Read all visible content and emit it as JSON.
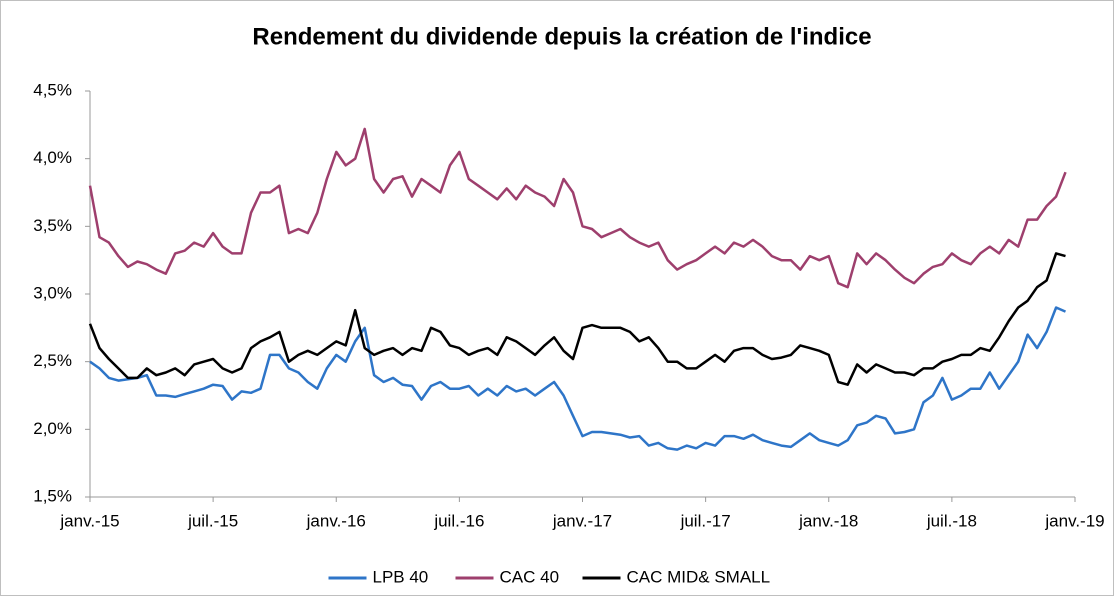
{
  "chart_data": {
    "type": "line",
    "title": "Rendement du dividende depuis la création de l'indice",
    "categories": [
      "janv.-15",
      null,
      null,
      null,
      null,
      null,
      null,
      null,
      null,
      null,
      null,
      null,
      null,
      "juil.-15",
      null,
      null,
      null,
      null,
      null,
      null,
      null,
      null,
      null,
      null,
      null,
      null,
      "janv.-16",
      null,
      null,
      null,
      null,
      null,
      null,
      null,
      null,
      null,
      null,
      null,
      null,
      "juil.-16",
      null,
      null,
      null,
      null,
      null,
      null,
      null,
      null,
      null,
      null,
      null,
      null,
      "janv.-17",
      null,
      null,
      null,
      null,
      null,
      null,
      null,
      null,
      null,
      null,
      null,
      null,
      "juil.-17",
      null,
      null,
      null,
      null,
      null,
      null,
      null,
      null,
      null,
      null,
      null,
      null,
      "janv.-18",
      null,
      null,
      null,
      null,
      null,
      null,
      null,
      null,
      null,
      null,
      null,
      null,
      "juil.-18",
      null,
      null,
      null,
      null,
      null,
      null,
      null,
      null,
      null,
      null,
      null,
      null,
      "janv.-19"
    ],
    "series": [
      {
        "name": "LPB 40",
        "color": "#2e75c8",
        "values": [
          2.5,
          2.45,
          2.38,
          2.36,
          2.37,
          2.38,
          2.4,
          2.25,
          2.25,
          2.24,
          2.26,
          2.28,
          2.3,
          2.33,
          2.32,
          2.22,
          2.28,
          2.27,
          2.3,
          2.55,
          2.55,
          2.45,
          2.42,
          2.35,
          2.3,
          2.45,
          2.55,
          2.5,
          2.65,
          2.75,
          2.4,
          2.35,
          2.38,
          2.33,
          2.32,
          2.22,
          2.32,
          2.35,
          2.3,
          2.3,
          2.32,
          2.25,
          2.3,
          2.25,
          2.32,
          2.28,
          2.3,
          2.25,
          2.3,
          2.35,
          2.25,
          2.1,
          1.95,
          1.98,
          1.98,
          1.97,
          1.96,
          1.94,
          1.95,
          1.88,
          1.9,
          1.86,
          1.85,
          1.88,
          1.86,
          1.9,
          1.88,
          1.95,
          1.95,
          1.93,
          1.96,
          1.92,
          1.9,
          1.88,
          1.87,
          1.92,
          1.97,
          1.92,
          1.9,
          1.88,
          1.92,
          2.03,
          2.05,
          2.1,
          2.08,
          1.97,
          1.98,
          2.0,
          2.2,
          2.25,
          2.38,
          2.22,
          2.25,
          2.3,
          2.3,
          2.42,
          2.3,
          2.4,
          2.5,
          2.7,
          2.6,
          2.72,
          2.9,
          2.87,
          null
        ]
      },
      {
        "name": "CAC 40",
        "color": "#9e3f6d",
        "values": [
          3.8,
          3.42,
          3.38,
          3.28,
          3.2,
          3.24,
          3.22,
          3.18,
          3.15,
          3.3,
          3.32,
          3.38,
          3.35,
          3.45,
          3.35,
          3.3,
          3.3,
          3.6,
          3.75,
          3.75,
          3.8,
          3.45,
          3.48,
          3.45,
          3.6,
          3.85,
          4.05,
          3.95,
          4.0,
          4.22,
          3.85,
          3.75,
          3.85,
          3.87,
          3.72,
          3.85,
          3.8,
          3.75,
          3.95,
          4.05,
          3.85,
          3.8,
          3.75,
          3.7,
          3.78,
          3.7,
          3.8,
          3.75,
          3.72,
          3.65,
          3.85,
          3.75,
          3.5,
          3.48,
          3.42,
          3.45,
          3.48,
          3.42,
          3.38,
          3.35,
          3.38,
          3.25,
          3.18,
          3.22,
          3.25,
          3.3,
          3.35,
          3.3,
          3.38,
          3.35,
          3.4,
          3.35,
          3.28,
          3.25,
          3.25,
          3.18,
          3.28,
          3.25,
          3.28,
          3.08,
          3.05,
          3.3,
          3.22,
          3.3,
          3.25,
          3.18,
          3.12,
          3.08,
          3.15,
          3.2,
          3.22,
          3.3,
          3.25,
          3.22,
          3.3,
          3.35,
          3.3,
          3.4,
          3.35,
          3.55,
          3.55,
          3.65,
          3.72,
          3.9,
          null
        ]
      },
      {
        "name": "CAC MID& SMALL",
        "color": "#000000",
        "values": [
          2.78,
          2.6,
          2.52,
          2.45,
          2.38,
          2.38,
          2.45,
          2.4,
          2.42,
          2.45,
          2.4,
          2.48,
          2.5,
          2.52,
          2.45,
          2.42,
          2.45,
          2.6,
          2.65,
          2.68,
          2.72,
          2.5,
          2.55,
          2.58,
          2.55,
          2.6,
          2.65,
          2.62,
          2.88,
          2.6,
          2.55,
          2.58,
          2.6,
          2.55,
          2.6,
          2.58,
          2.75,
          2.72,
          2.62,
          2.6,
          2.55,
          2.58,
          2.6,
          2.55,
          2.68,
          2.65,
          2.6,
          2.55,
          2.62,
          2.68,
          2.58,
          2.52,
          2.75,
          2.77,
          2.75,
          2.75,
          2.75,
          2.72,
          2.65,
          2.68,
          2.6,
          2.5,
          2.5,
          2.45,
          2.45,
          2.5,
          2.55,
          2.5,
          2.58,
          2.6,
          2.6,
          2.55,
          2.52,
          2.53,
          2.55,
          2.62,
          2.6,
          2.58,
          2.55,
          2.35,
          2.33,
          2.48,
          2.42,
          2.48,
          2.45,
          2.42,
          2.42,
          2.4,
          2.45,
          2.45,
          2.5,
          2.52,
          2.55,
          2.55,
          2.6,
          2.58,
          2.68,
          2.8,
          2.9,
          2.95,
          3.05,
          3.1,
          3.3,
          3.28,
          null
        ]
      }
    ],
    "ylim": [
      1.5,
      4.5
    ],
    "yticks": [
      {
        "value": 1.5,
        "label": "1,5%"
      },
      {
        "value": 2.0,
        "label": "2,0%"
      },
      {
        "value": 2.5,
        "label": "2,5%"
      },
      {
        "value": 3.0,
        "label": "3,0%"
      },
      {
        "value": 3.5,
        "label": "3,5%"
      },
      {
        "value": 4.0,
        "label": "4,0%"
      },
      {
        "value": 4.5,
        "label": "4,5%"
      }
    ],
    "grid": false,
    "legend": "bottom"
  }
}
